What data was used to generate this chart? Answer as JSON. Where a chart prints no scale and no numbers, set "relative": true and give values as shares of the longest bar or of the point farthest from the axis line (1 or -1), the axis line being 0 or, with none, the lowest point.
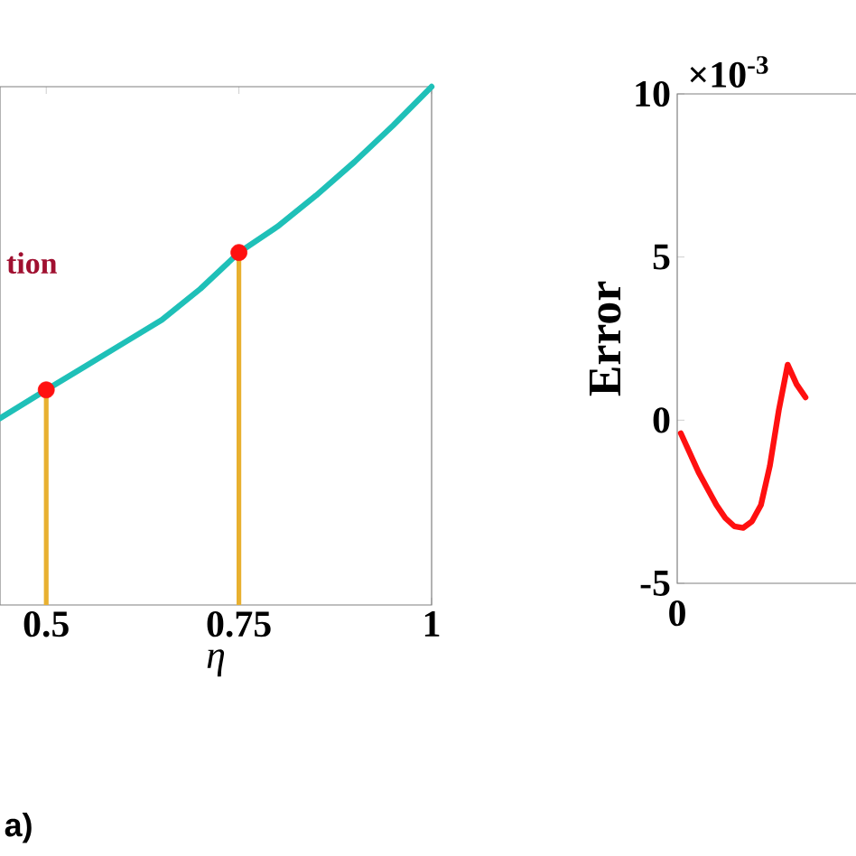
{
  "chart_data": [
    {
      "type": "line",
      "xlabel": "η",
      "relative": true,
      "tick_labels": "x",
      "xlim": [
        0.44,
        1
      ],
      "xticks": [
        0.5,
        0.75,
        1
      ],
      "annotations": [
        "tion",
        "a)"
      ],
      "series": [
        {
          "color": "#1fc0b8",
          "x": [
            0.44,
            0.5,
            0.55,
            0.6,
            0.65,
            0.7,
            0.75,
            0.8,
            0.85,
            0.9,
            0.95,
            1
          ],
          "values": [
            0.36,
            0.415,
            0.46,
            0.505,
            0.55,
            0.61,
            0.68,
            0.73,
            0.79,
            0.855,
            0.925,
            1
          ]
        },
        {
          "type": "lollipop",
          "color": "#e8b030",
          "marker": "circle",
          "colors": [
            "#ff1010",
            "#ff1010"
          ],
          "x": [
            0.5,
            0.75
          ],
          "values": [
            0.415,
            0.68
          ]
        }
      ]
    },
    {
      "type": "line",
      "ylabel": "Error",
      "ylim": [
        -5,
        10
      ],
      "yticks": [
        -5,
        0,
        5,
        10
      ],
      "categories": [
        null,
        null,
        null,
        null,
        null,
        null,
        null,
        null,
        null,
        null,
        null,
        null,
        null,
        null,
        null
      ],
      "annotations": [
        "×10$^{-3}$",
        "0"
      ],
      "series": [
        {
          "color": "#ff1010",
          "values": [
            -0.4,
            -1.0,
            -1.6,
            -2.1,
            -2.6,
            -3.0,
            -3.25,
            -3.3,
            -3.1,
            -2.6,
            -1.4,
            0.3,
            1.7,
            1.1,
            0.7
          ]
        }
      ]
    }
  ]
}
